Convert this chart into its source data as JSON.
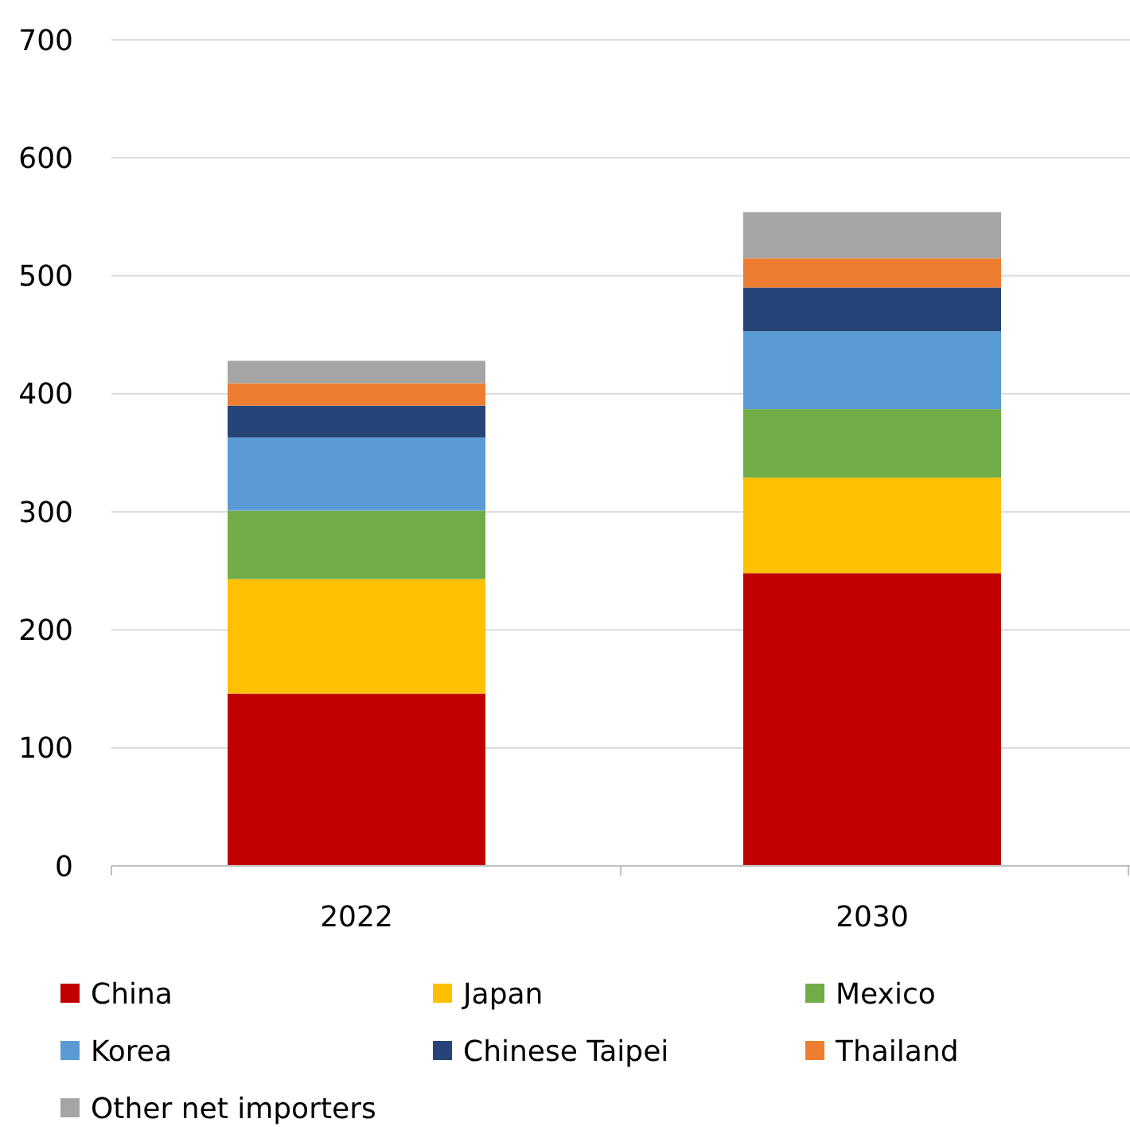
{
  "chart_data": {
    "type": "bar",
    "stacked": true,
    "categories": [
      "2022",
      "2030"
    ],
    "series": [
      {
        "name": "China",
        "color": "#c00000",
        "values": [
          146,
          248
        ]
      },
      {
        "name": "Japan",
        "color": "#ffc000",
        "values": [
          97,
          81
        ]
      },
      {
        "name": "Mexico",
        "color": "#70ad47",
        "values": [
          58,
          58
        ]
      },
      {
        "name": "Korea",
        "color": "#5b9bd5",
        "values": [
          62,
          66
        ]
      },
      {
        "name": "Chinese Taipei",
        "color": "#264478",
        "values": [
          27,
          37
        ]
      },
      {
        "name": "Thailand",
        "color": "#ed7d31",
        "values": [
          19,
          25
        ]
      },
      {
        "name": "Other net importers",
        "color": "#a5a5a5",
        "values": [
          19,
          39
        ]
      }
    ],
    "ylim": [
      0,
      700
    ],
    "yticks": [
      0,
      100,
      200,
      300,
      400,
      500,
      600,
      700
    ],
    "grid": "y",
    "legend": "bottom"
  }
}
